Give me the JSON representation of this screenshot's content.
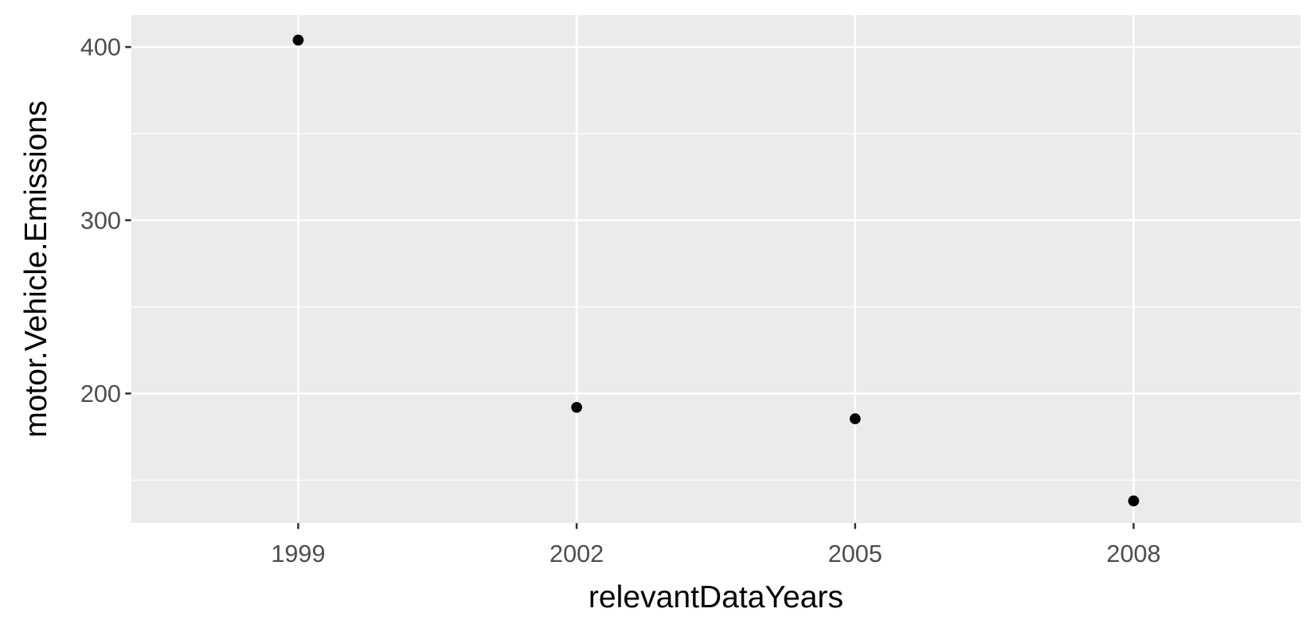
{
  "chart_data": {
    "type": "scatter",
    "x_label": "relevantDataYears",
    "y_label": "motor.Vehicle.Emissions",
    "categories": [
      "1999",
      "2002",
      "2005",
      "2008"
    ],
    "values": [
      404,
      192,
      185.4,
      138
    ],
    "color": "#000000",
    "ylim": [
      125.2,
      418.4
    ],
    "yticks": [
      200,
      300,
      400
    ],
    "yminor_ticks": [
      150,
      250,
      350
    ],
    "grid": true,
    "panel_color": "#ebebeb"
  }
}
